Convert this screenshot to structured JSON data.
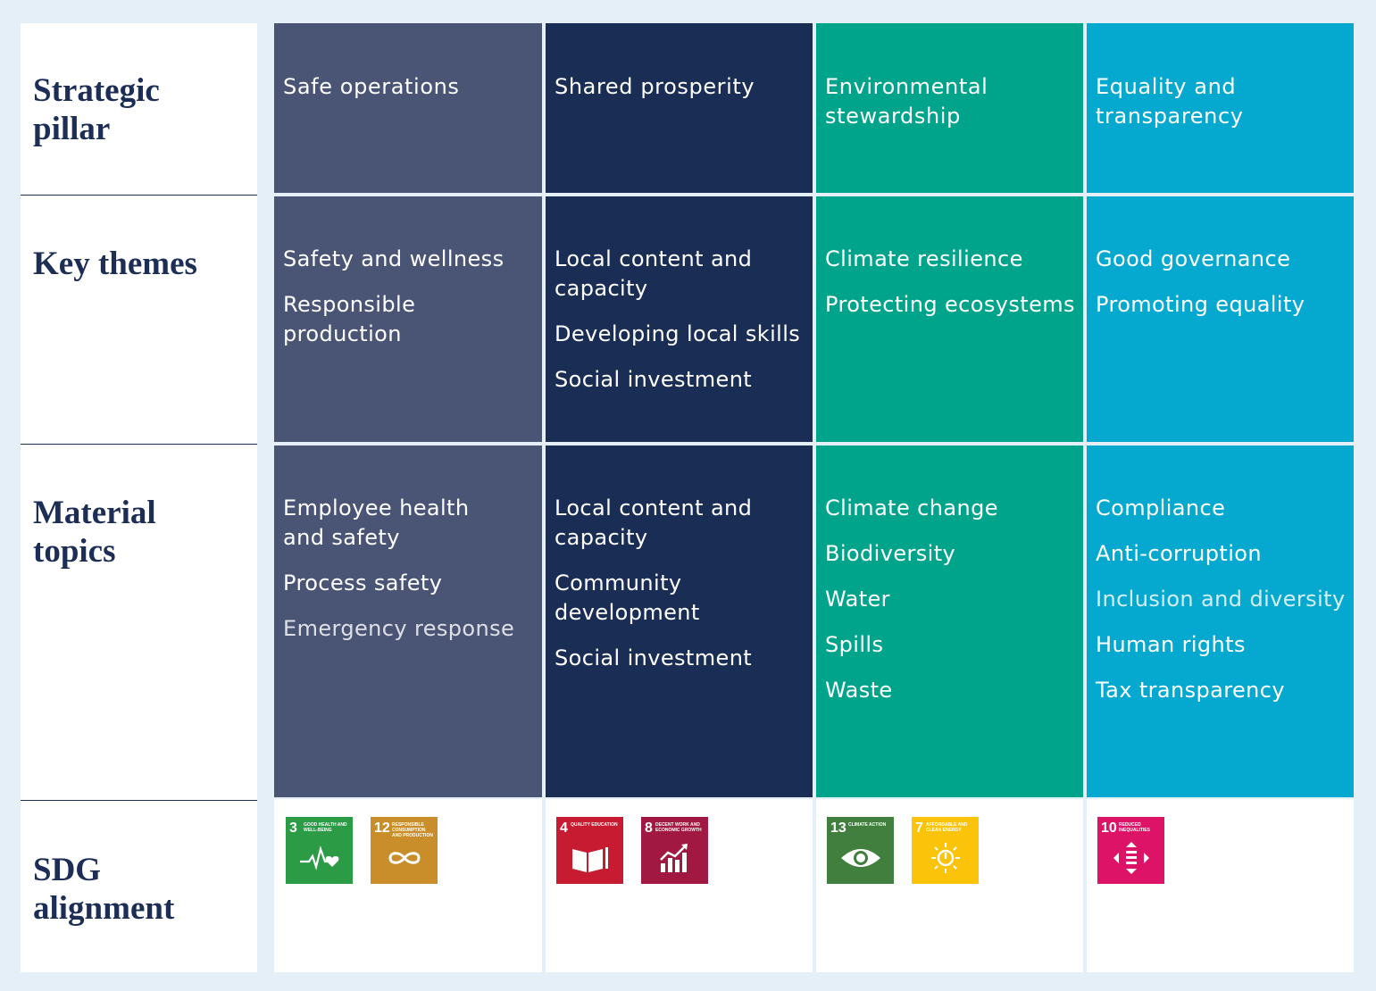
{
  "row_labels": {
    "strategic_pillar": "Strategic\npillar",
    "key_themes": "Key themes",
    "material_topics": "Material\ntopics",
    "sdg_alignment": "SDG\nalignment"
  },
  "colors": {
    "safe_operations": "#4a5475",
    "shared_prosperity": "#1a2e55",
    "environmental_stewardship": "#00a48b",
    "equality_transparency": "#05a8cf",
    "label_text": "#1c2e56",
    "background": "#e4eff7"
  },
  "pillars": [
    {
      "title": "Safe operations",
      "themes": [
        "Safety and wellness",
        "Responsible production"
      ],
      "topics": [
        "Employee health\nand safety",
        "Process safety",
        "Emergency response"
      ],
      "sdgs": [
        {
          "number": "3",
          "text": "Good health and well-being",
          "color": "#2b9b45",
          "icon": "heartbeat-icon"
        },
        {
          "number": "12",
          "text": "Responsible consumption and production",
          "color": "#c98e29",
          "icon": "infinity-icon"
        }
      ]
    },
    {
      "title": "Shared prosperity",
      "themes": [
        "Local content and\ncapacity",
        "Developing local skills",
        "Social investment"
      ],
      "topics": [
        "Local content and\ncapacity",
        "Community\ndevelopment",
        "Social investment"
      ],
      "sdgs": [
        {
          "number": "4",
          "text": "Quality education",
          "color": "#c61b31",
          "icon": "book-icon"
        },
        {
          "number": "8",
          "text": "Decent work and economic growth",
          "color": "#a11942",
          "icon": "growth-chart-icon"
        }
      ]
    },
    {
      "title": "Environmental\nstewardship",
      "themes": [
        "Climate resilience",
        "Protecting ecosystems"
      ],
      "topics": [
        "Climate change",
        "Biodiversity",
        "Water",
        "Spills",
        "Waste"
      ],
      "sdgs": [
        {
          "number": "13",
          "text": "Climate action",
          "color": "#407f3e",
          "icon": "eye-globe-icon"
        },
        {
          "number": "7",
          "text": "Affordable and clean energy",
          "color": "#fcc30b",
          "icon": "sun-power-icon"
        }
      ]
    },
    {
      "title": "Equality and\ntransparency",
      "themes": [
        "Good governance",
        "Promoting equality"
      ],
      "topics": [
        "Compliance",
        "Anti-corruption",
        "Inclusion and diversity",
        "Human rights",
        "Tax transparency"
      ],
      "sdgs": [
        {
          "number": "10",
          "text": "Reduced inequalities",
          "color": "#dd1367",
          "icon": "inequality-arrows-icon"
        }
      ]
    }
  ]
}
